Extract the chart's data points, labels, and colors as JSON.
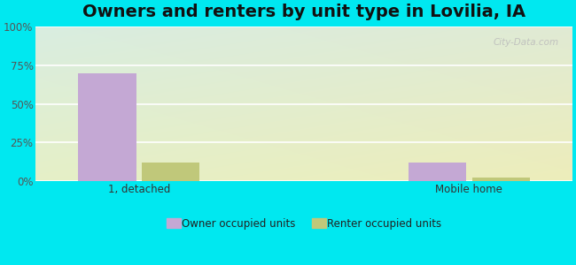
{
  "title": "Owners and renters by unit type in Lovilia, IA",
  "categories": [
    "1, detached",
    "Mobile home"
  ],
  "owner_values": [
    70,
    12
  ],
  "renter_values": [
    12,
    2
  ],
  "owner_color": "#c4a8d4",
  "renter_color": "#c0c87a",
  "ylim": [
    0,
    100
  ],
  "yticks": [
    0,
    25,
    50,
    75,
    100
  ],
  "ytick_labels": [
    "0%",
    "25%",
    "50%",
    "75%",
    "100%"
  ],
  "outer_bg": "#00e8f0",
  "bar_width": 0.28,
  "group_positions": [
    1.0,
    2.6
  ],
  "legend_owner": "Owner occupied units",
  "legend_renter": "Renter occupied units",
  "watermark": "City-Data.com",
  "title_fontsize": 14
}
